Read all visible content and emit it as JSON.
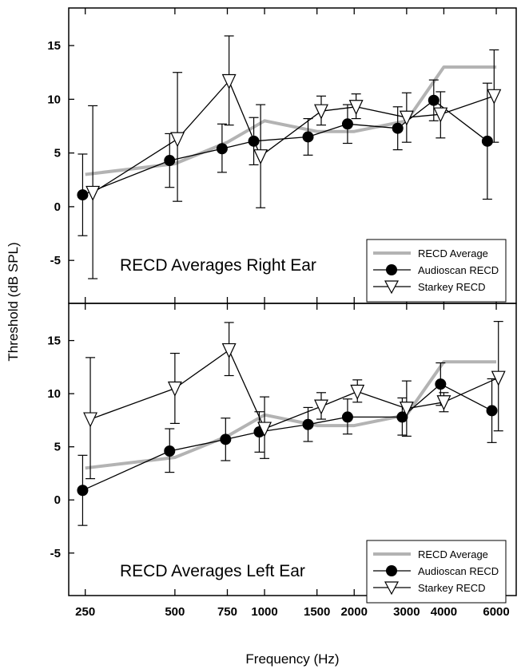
{
  "chart_data": {
    "type": "line",
    "ylabel": "Threshold (dB SPL)",
    "xlabel": "Frequency (Hz)",
    "x_scale": "log",
    "x_ticks": [
      250,
      500,
      750,
      1000,
      1500,
      2000,
      3000,
      4000,
      6000
    ],
    "x_tick_labels": [
      "250",
      "500",
      "750",
      "1000",
      "1500",
      "2000",
      "3000",
      "4000",
      "6000"
    ],
    "panels": [
      {
        "title": "RECD Averages Right Ear",
        "ylim": [
          -9,
          18.5
        ],
        "y_ticks": [
          15,
          10,
          5,
          0,
          -5
        ],
        "y_tick_labels": [
          "15",
          "10",
          "5",
          "0",
          "-5"
        ],
        "legend_position": "bottom-right",
        "series": [
          {
            "name": "RECD Average",
            "style": "gray-line",
            "x": [
              250,
              500,
              750,
              1000,
              1500,
              2000,
              3000,
              4000,
              6000
            ],
            "y": [
              3,
              4,
              6,
              8,
              7,
              7,
              8,
              13,
              13
            ]
          },
          {
            "name": "Audioscan RECD",
            "style": "filled-circle",
            "x": [
              245,
              480,
              720,
              920,
              1400,
              1900,
              2800,
              3700,
              5600
            ],
            "y": [
              1.1,
              4.3,
              5.4,
              6.1,
              6.5,
              7.7,
              7.3,
              9.9,
              6.1
            ],
            "err_low": [
              -2.7,
              1.8,
              3.2,
              3.9,
              4.8,
              5.9,
              5.3,
              8.0,
              0.7
            ],
            "err_high": [
              4.9,
              6.8,
              7.7,
              8.3,
              8.2,
              9.5,
              9.3,
              11.8,
              11.5
            ]
          },
          {
            "name": "Starkey RECD",
            "style": "open-triangle",
            "x": [
              265,
              510,
              760,
              970,
              1550,
              2030,
              3000,
              3900,
              5900
            ],
            "y": [
              1.3,
              6.3,
              11.7,
              4.7,
              8.9,
              9.3,
              8.3,
              8.6,
              10.3
            ],
            "err_low": [
              -6.7,
              0.5,
              7.6,
              -0.1,
              7.6,
              8.2,
              6.0,
              6.4,
              6.0
            ],
            "err_high": [
              9.4,
              12.5,
              15.9,
              9.5,
              10.3,
              10.5,
              10.6,
              10.7,
              14.6
            ]
          }
        ]
      },
      {
        "title": "RECD Averages Left Ear",
        "ylim": [
          -9,
          18.5
        ],
        "y_ticks": [
          15,
          10,
          5,
          0,
          -5
        ],
        "y_tick_labels": [
          "15",
          "10",
          "5",
          "0",
          "-5"
        ],
        "legend_position": "bottom-right",
        "series": [
          {
            "name": "RECD Average",
            "style": "gray-line",
            "x": [
              250,
              500,
              750,
              1000,
              1500,
              2000,
              3000,
              4000,
              6000
            ],
            "y": [
              3,
              4,
              6,
              8,
              7,
              7,
              8,
              13,
              13
            ]
          },
          {
            "name": "Audioscan RECD",
            "style": "filled-circle",
            "x": [
              245,
              480,
              740,
              960,
              1400,
              1900,
              2900,
              3900,
              5800
            ],
            "y": [
              0.9,
              4.6,
              5.7,
              6.4,
              7.1,
              7.8,
              7.8,
              10.9,
              8.4
            ],
            "err_low": [
              -2.4,
              2.6,
              3.7,
              4.5,
              5.5,
              6.2,
              6.1,
              8.9,
              5.4
            ],
            "err_high": [
              4.2,
              6.7,
              7.7,
              8.3,
              8.7,
              9.5,
              9.6,
              12.9,
              11.4
            ]
          },
          {
            "name": "Starkey RECD",
            "style": "open-triangle",
            "x": [
              260,
              500,
              760,
              1000,
              1550,
              2050,
              3000,
              4000,
              6100
            ],
            "y": [
              7.6,
              10.5,
              14.1,
              6.7,
              8.8,
              10.2,
              8.6,
              9.2,
              11.5
            ],
            "err_low": [
              2.0,
              7.2,
              11.7,
              3.9,
              7.6,
              9.2,
              6.0,
              8.3,
              6.5
            ],
            "err_high": [
              13.4,
              13.8,
              16.7,
              9.7,
              10.1,
              11.3,
              11.2,
              10.1,
              16.8
            ]
          }
        ]
      }
    ]
  }
}
